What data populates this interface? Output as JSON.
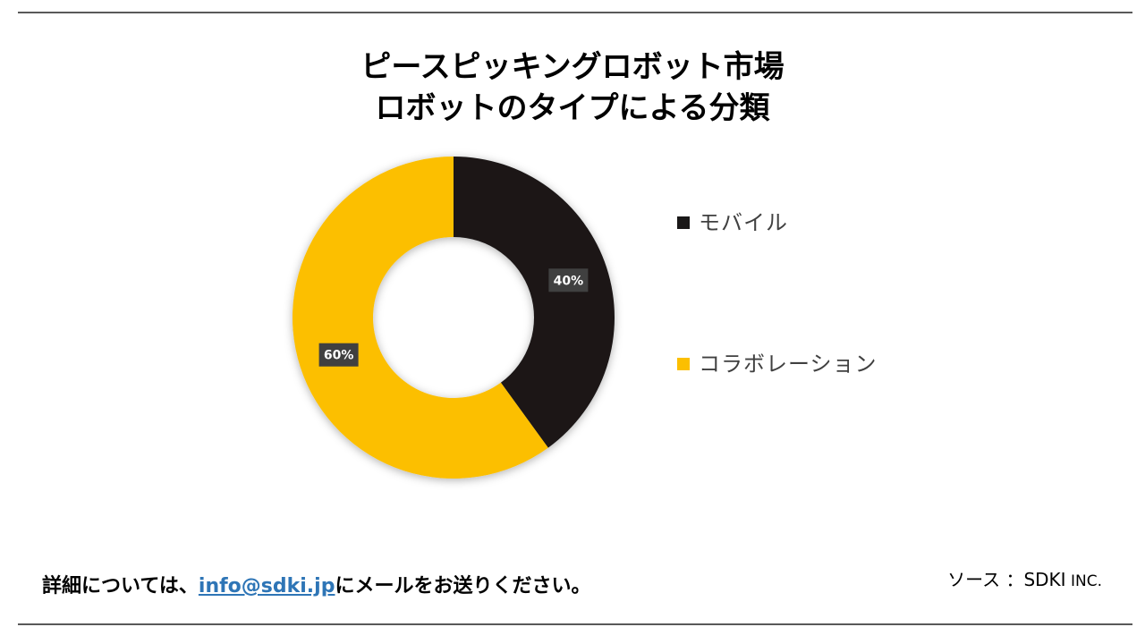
{
  "title_line1": "ピースピッキングロボット市場",
  "title_line2": "ロボットのタイプによる分類",
  "chart_data": {
    "type": "pie",
    "variant": "donut",
    "categories": [
      "モバイル",
      "コラボレーション"
    ],
    "values": [
      40,
      60
    ],
    "unit": "%",
    "data_labels": [
      "40%",
      "60%"
    ],
    "colors": [
      "#1a1818",
      "#fcbf00"
    ],
    "legend_position": "right"
  },
  "footer": {
    "prefix": "詳細については、",
    "email": "info@sdki.jp",
    "suffix": "にメールをお送りください。"
  },
  "source": {
    "label": "ソース ：SDKI",
    "suffix": " INC."
  }
}
